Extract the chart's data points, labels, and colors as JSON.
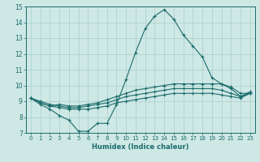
{
  "title": "",
  "xlabel": "Humidex (Indice chaleur)",
  "ylabel": "",
  "xlim": [
    -0.5,
    23.5
  ],
  "ylim": [
    7,
    15
  ],
  "xticks": [
    0,
    1,
    2,
    3,
    4,
    5,
    6,
    7,
    8,
    9,
    10,
    11,
    12,
    13,
    14,
    15,
    16,
    17,
    18,
    19,
    20,
    21,
    22,
    23
  ],
  "yticks": [
    7,
    8,
    9,
    10,
    11,
    12,
    13,
    14,
    15
  ],
  "bg_color": "#cee8e5",
  "grid_color": "#aacfcc",
  "line_color": "#1a6b6b",
  "line1": [
    9.2,
    8.8,
    8.5,
    8.1,
    7.8,
    7.1,
    7.1,
    7.6,
    7.6,
    8.8,
    10.4,
    12.1,
    13.6,
    14.4,
    14.8,
    14.2,
    13.2,
    12.5,
    11.8,
    10.5,
    10.1,
    9.8,
    9.3,
    9.6
  ],
  "line2": [
    9.2,
    8.9,
    8.7,
    8.8,
    8.7,
    8.7,
    8.8,
    8.9,
    9.1,
    9.3,
    9.5,
    9.7,
    9.8,
    9.9,
    10.0,
    10.1,
    10.1,
    10.1,
    10.1,
    10.1,
    10.1,
    9.9,
    9.5,
    9.5
  ],
  "line3": [
    9.2,
    9.0,
    8.8,
    8.7,
    8.6,
    8.6,
    8.7,
    8.8,
    8.9,
    9.1,
    9.3,
    9.4,
    9.5,
    9.6,
    9.7,
    9.8,
    9.8,
    9.8,
    9.8,
    9.8,
    9.7,
    9.5,
    9.3,
    9.5
  ],
  "line4": [
    9.2,
    8.9,
    8.7,
    8.6,
    8.5,
    8.5,
    8.5,
    8.6,
    8.7,
    8.9,
    9.0,
    9.1,
    9.2,
    9.3,
    9.4,
    9.5,
    9.5,
    9.5,
    9.5,
    9.5,
    9.4,
    9.3,
    9.2,
    9.5
  ]
}
